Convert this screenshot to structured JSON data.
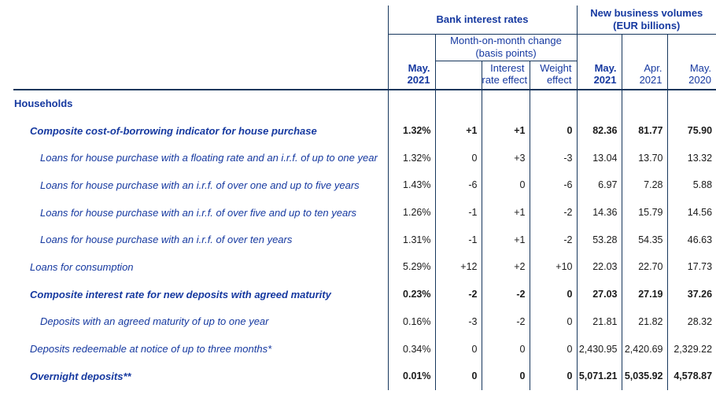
{
  "header": {
    "bank_interest_rates": "Bank interest rates",
    "new_business_volumes": [
      "New business volumes",
      "(EUR billions)"
    ],
    "mom_change": [
      "Month-on-month change",
      "(basis points)"
    ],
    "columns": [
      {
        "label": [
          "May.",
          "2021"
        ],
        "bold": true
      },
      {
        "label": [
          "",
          ""
        ],
        "bold": false
      },
      {
        "label": [
          "Interest",
          "rate effect"
        ],
        "bold": false
      },
      {
        "label": [
          "Weight",
          "effect"
        ],
        "bold": false
      },
      {
        "label": [
          "May.",
          "2021"
        ],
        "bold": true
      },
      {
        "label": [
          "Apr.",
          "2021"
        ],
        "bold": false
      },
      {
        "label": [
          "May.",
          "2020"
        ],
        "bold": false
      }
    ]
  },
  "rows": [
    {
      "label": "Households",
      "indent": "sec",
      "label_bold": true,
      "values_bold": false,
      "values": [
        "",
        "",
        "",
        "",
        "",
        "",
        ""
      ]
    },
    {
      "label": "Composite cost-of-borrowing indicator for house purchase",
      "indent": "lvl1",
      "label_bold": true,
      "values_bold": true,
      "values": [
        "1.32%",
        "+1",
        "+1",
        "0",
        "82.36",
        "81.77",
        "75.90"
      ]
    },
    {
      "label": "Loans for house purchase with a floating rate and an i.r.f. of up to one year",
      "indent": "lvl2",
      "label_bold": false,
      "values_bold": false,
      "values": [
        "1.32%",
        "0",
        "+3",
        "-3",
        "13.04",
        "13.70",
        "13.32"
      ]
    },
    {
      "label": "Loans for house purchase with an i.r.f. of over one and up to five years",
      "indent": "lvl2",
      "label_bold": false,
      "values_bold": false,
      "values": [
        "1.43%",
        "-6",
        "0",
        "-6",
        "6.97",
        "7.28",
        "5.88"
      ]
    },
    {
      "label": "Loans for house purchase with an i.r.f. of over five and up to ten years",
      "indent": "lvl2",
      "label_bold": false,
      "values_bold": false,
      "values": [
        "1.26%",
        "-1",
        "+1",
        "-2",
        "14.36",
        "15.79",
        "14.56"
      ]
    },
    {
      "label": "Loans for house purchase with an i.r.f. of over ten years",
      "indent": "lvl2",
      "label_bold": false,
      "values_bold": false,
      "values": [
        "1.31%",
        "-1",
        "+1",
        "-2",
        "53.28",
        "54.35",
        "46.63"
      ]
    },
    {
      "label": "Loans for consumption",
      "indent": "lvl1",
      "label_bold": false,
      "values_bold": false,
      "values": [
        "5.29%",
        "+12",
        "+2",
        "+10",
        "22.03",
        "22.70",
        "17.73"
      ]
    },
    {
      "label": "Composite interest rate for new deposits with agreed maturity",
      "indent": "lvl1",
      "label_bold": true,
      "values_bold": true,
      "values": [
        "0.23%",
        "-2",
        "-2",
        "0",
        "27.03",
        "27.19",
        "37.26"
      ]
    },
    {
      "label": "Deposits with an agreed maturity of up to one year",
      "indent": "lvl2",
      "label_bold": false,
      "values_bold": false,
      "values": [
        "0.16%",
        "-3",
        "-2",
        "0",
        "21.81",
        "21.82",
        "28.32"
      ]
    },
    {
      "label": "Deposits redeemable at notice of up to three months*",
      "indent": "lvl1",
      "label_bold": false,
      "values_bold": false,
      "values": [
        "0.34%",
        "0",
        "0",
        "0",
        "2,430.95",
        "2,420.69",
        "2,329.22"
      ]
    },
    {
      "label": "Overnight deposits**",
      "indent": "lvl1",
      "label_bold": true,
      "values_bold": true,
      "values": [
        "0.01%",
        "0",
        "0",
        "0",
        "5,071.21",
        "5,035.92",
        "4,578.87"
      ]
    }
  ],
  "colors": {
    "text_blue": "#1639a0",
    "line_navy": "#17375d",
    "number_black": "#1b1b1b",
    "background": "#ffffff"
  }
}
